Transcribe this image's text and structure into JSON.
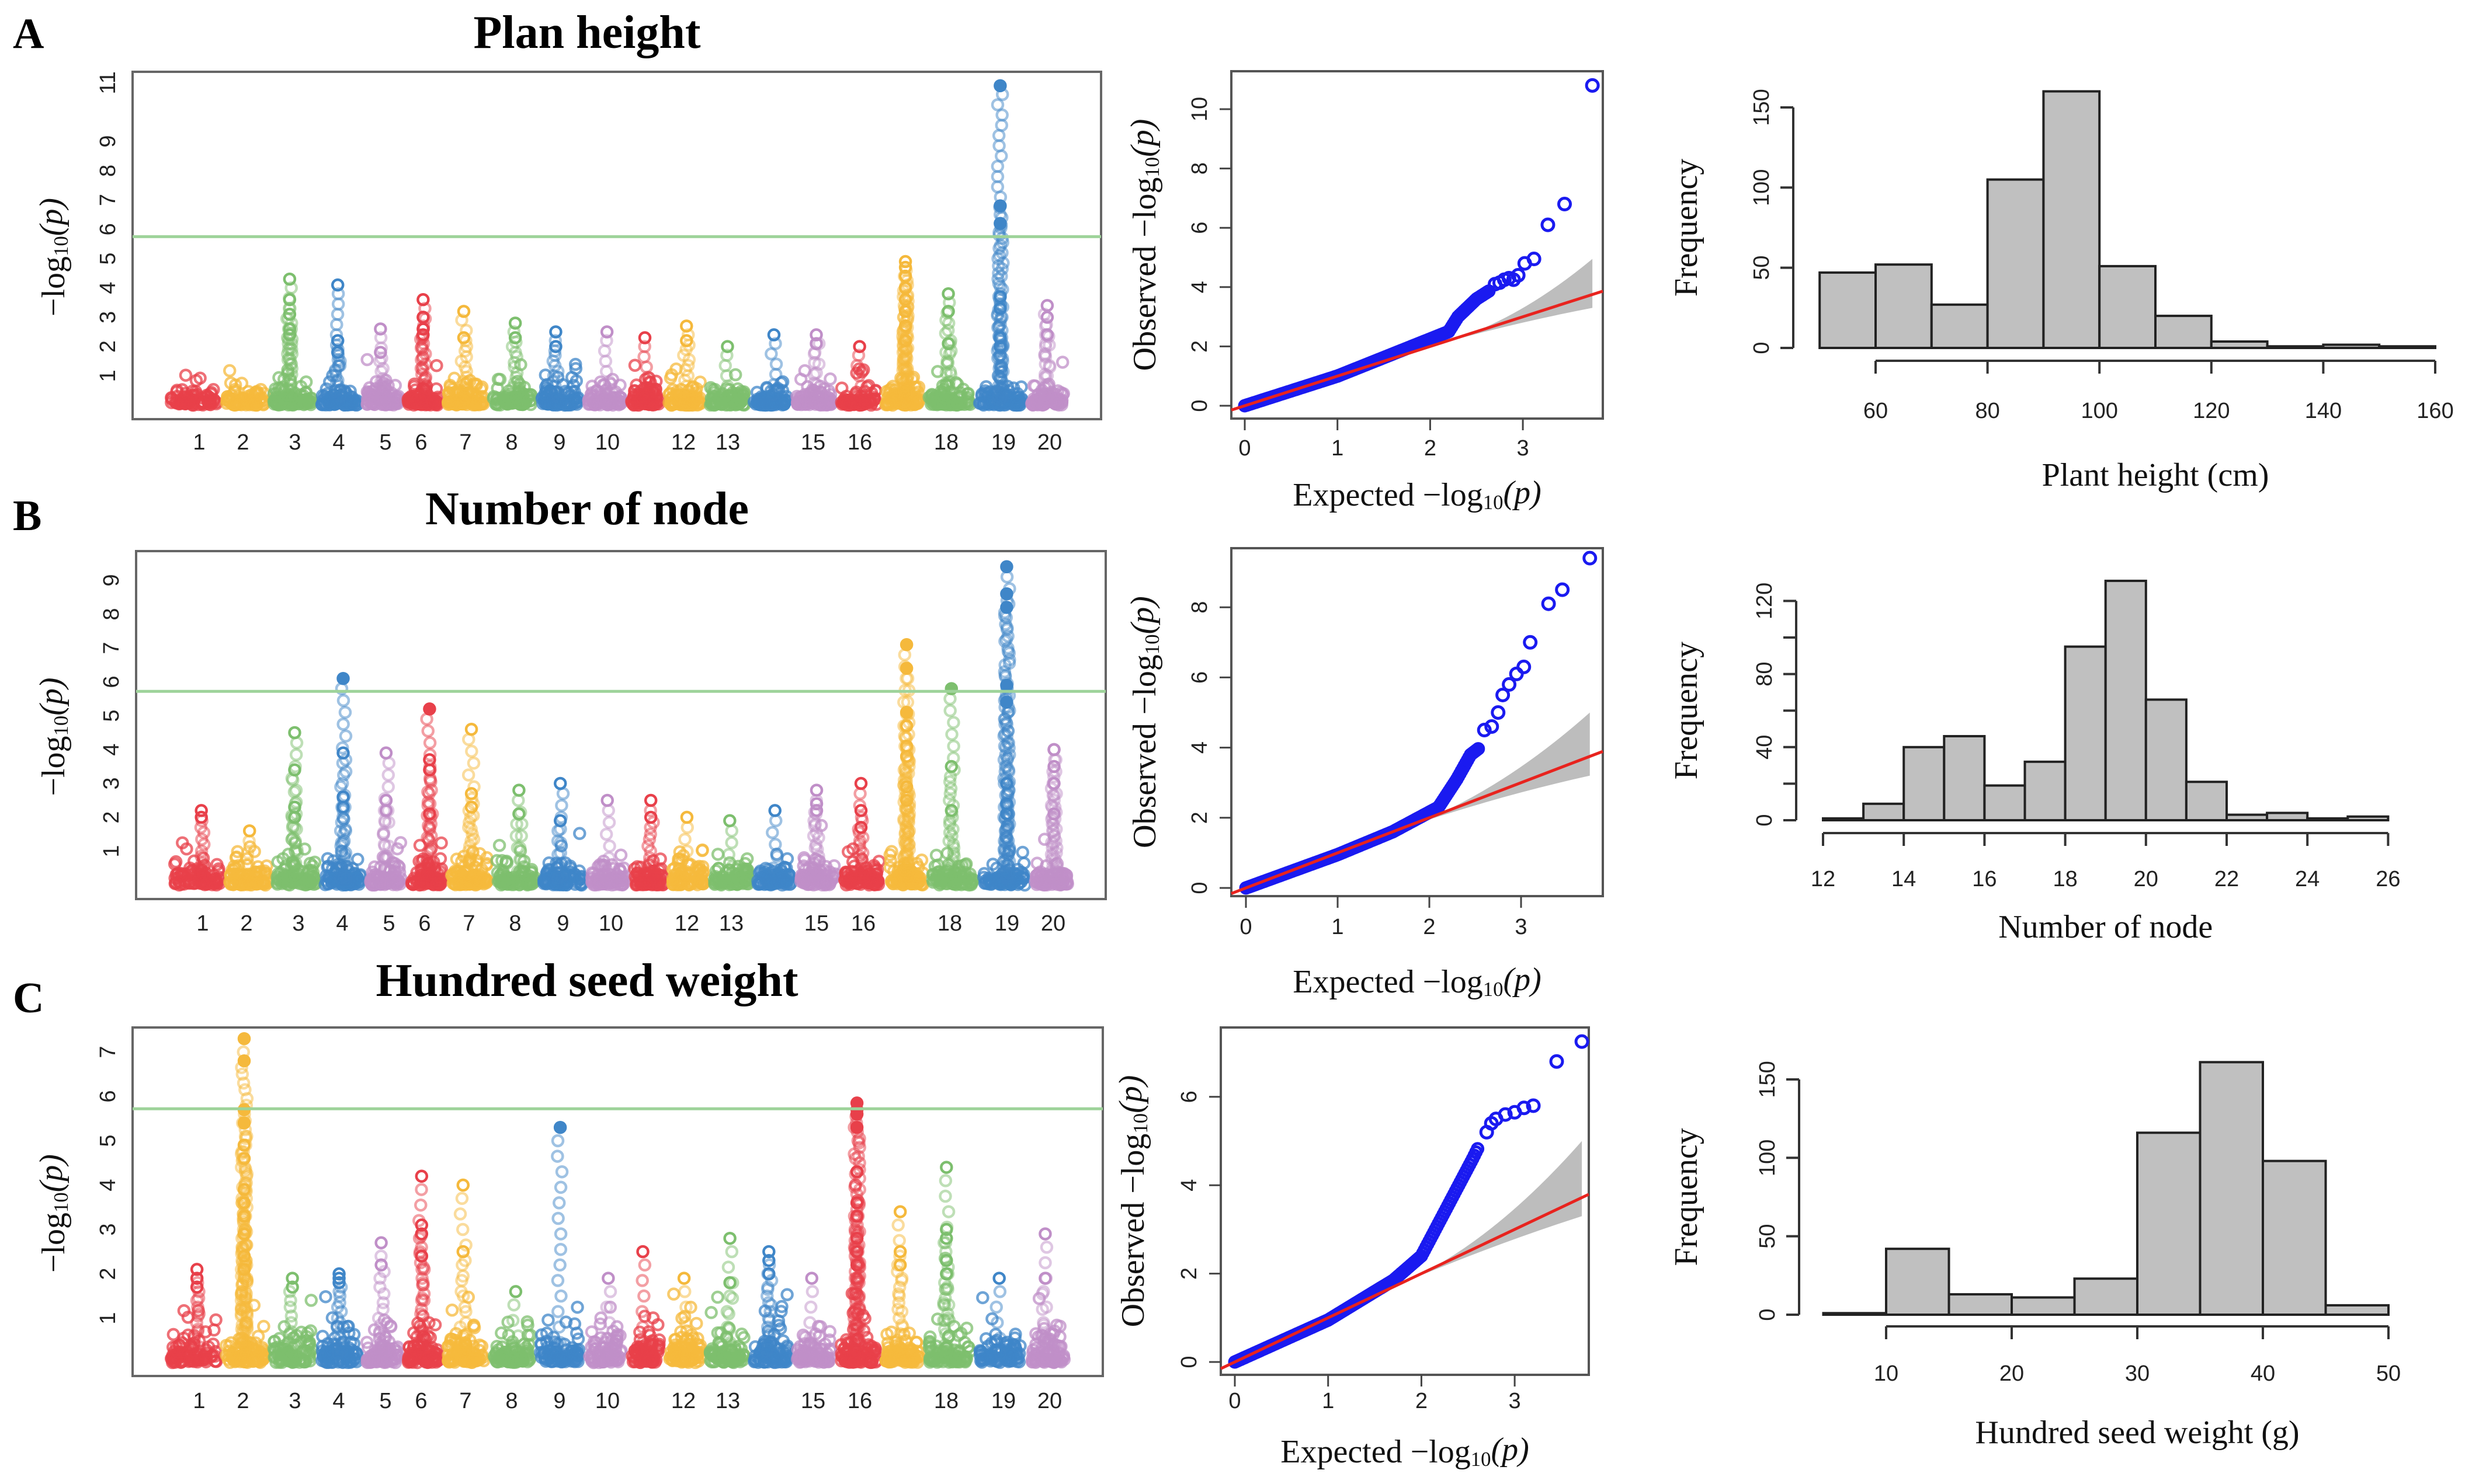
{
  "panels": [
    {
      "letter": "A",
      "title": "Plan height",
      "manhattan": {
        "type": "scatter",
        "ylabel": {
          "prefix": "−log",
          "sub": "10",
          "suffix": "(p)"
        },
        "yticks": [
          1,
          2,
          3,
          4,
          5,
          6,
          7,
          8,
          9,
          11
        ],
        "threshold": 5.75,
        "chr_labels": [
          "1",
          "2",
          "3",
          "4",
          "5",
          "6",
          "7",
          "8",
          "9",
          "10",
          "12",
          "13",
          "15",
          "16",
          "18",
          "19",
          "20"
        ],
        "peaks": {
          "3": [
            4.3,
            3.6,
            3.1,
            2.6,
            2.4
          ],
          "4": [
            4.1,
            2.2,
            1.8
          ],
          "5": [
            2.6,
            1.8
          ],
          "6": [
            3.6,
            3.0,
            2.6,
            2.4
          ],
          "7": [
            3.2,
            2.3
          ],
          "8": [
            2.8,
            2.3
          ],
          "9": [
            2.5,
            2.0
          ],
          "10": [
            2.5
          ],
          "11": [
            2.3
          ],
          "12": [
            2.7,
            2.2
          ],
          "13": [
            2.0
          ],
          "14": [
            2.4
          ],
          "15": [
            2.4,
            2.1
          ],
          "16": [
            2.0
          ],
          "17": [
            4.9,
            4.7,
            4.4,
            4.0,
            3.6,
            3.2,
            2.7,
            2.2
          ],
          "18": [
            3.8,
            3.2,
            2.1
          ],
          "19": [
            10.9,
            6.8,
            6.2,
            3.7,
            3.3,
            2.3,
            2.0
          ],
          "20": [
            3.4,
            3.0,
            2.4
          ]
        }
      },
      "qq": {
        "type": "scatter",
        "xlabel": {
          "prefix": "Expected −log",
          "sub": "10",
          "suffix": "(p)"
        },
        "ylabel": {
          "prefix": "Observed −log",
          "sub": "10",
          "suffix": "(p)"
        },
        "xticks": [
          0,
          1,
          2,
          3
        ],
        "yticks": [
          0,
          2,
          4,
          6,
          8,
          10
        ],
        "bulk": [
          [
            0,
            0
          ],
          [
            1,
            1
          ],
          [
            1.8,
            2.0
          ],
          [
            2.2,
            2.5
          ],
          [
            2.3,
            3.0
          ],
          [
            2.5,
            3.6
          ],
          [
            2.65,
            3.9
          ]
        ],
        "tail": [
          [
            2.7,
            4.1
          ],
          [
            2.75,
            4.15
          ],
          [
            2.8,
            4.25
          ],
          [
            2.85,
            4.3
          ],
          [
            2.9,
            4.25
          ],
          [
            2.95,
            4.4
          ],
          [
            3.02,
            4.8
          ],
          [
            3.12,
            4.95
          ],
          [
            3.27,
            6.1
          ],
          [
            3.45,
            6.8
          ],
          [
            3.75,
            10.8
          ]
        ],
        "band": {
          "from": 2.0,
          "to": 3.75,
          "upper_end": 4.95,
          "lower_end": 3.3
        }
      },
      "hist": {
        "type": "bar",
        "xlabel": "Plant height (cm)",
        "ylabel": "Frequency",
        "bin_start": 50,
        "bin_width": 10,
        "counts": [
          47,
          52,
          27,
          105,
          160,
          51,
          20,
          4,
          1,
          2,
          1
        ],
        "xticks": [
          "60",
          "80",
          "100",
          "120",
          "140",
          "160"
        ],
        "yticks": [
          "0",
          "50",
          "100",
          "150"
        ]
      }
    },
    {
      "letter": "B",
      "title": "Number of node",
      "manhattan": {
        "type": "scatter",
        "ylabel": {
          "prefix": "−log",
          "sub": "10",
          "suffix": "(p)"
        },
        "yticks": [
          1,
          2,
          3,
          4,
          5,
          6,
          7,
          8,
          9
        ],
        "threshold": 5.72,
        "chr_labels": [
          "1",
          "2",
          "3",
          "4",
          "5",
          "6",
          "7",
          "8",
          "9",
          "10",
          "12",
          "13",
          "15",
          "16",
          "18",
          "19",
          "20"
        ],
        "peaks": {
          "1": [
            2.2,
            2.0
          ],
          "2": [
            1.6
          ],
          "3": [
            4.5,
            3.4,
            2.3,
            2.0
          ],
          "4": [
            6.1,
            3.9,
            2.6,
            2.3
          ],
          "5": [
            3.9,
            2.5,
            2.2
          ],
          "6": [
            5.2,
            3.7,
            3.4,
            2.1
          ],
          "7": [
            4.6,
            2.7,
            2.3
          ],
          "8": [
            2.8,
            2.1
          ],
          "9": [
            3.0,
            1.9
          ],
          "10": [
            2.5
          ],
          "11": [
            2.5,
            2.0
          ],
          "12": [
            2.0
          ],
          "13": [
            1.9
          ],
          "14": [
            2.2
          ],
          "15": [
            2.8,
            2.4,
            2.2
          ],
          "16": [
            3.0,
            2.2,
            1.7
          ],
          "17": [
            7.1,
            6.4,
            5.1,
            4.7,
            4.1,
            3.8,
            2.9,
            2.5
          ],
          "18": [
            5.8,
            3.5,
            2.2
          ],
          "19": [
            9.4,
            8.6,
            8.2,
            5.9,
            5.4,
            3.0,
            2.4,
            2.1
          ],
          "20": [
            4.0,
            4.0,
            3.5,
            3.0,
            2.1
          ]
        }
      },
      "qq": {
        "type": "scatter",
        "xlabel": {
          "prefix": "Expected −log",
          "sub": "10",
          "suffix": "(p)"
        },
        "ylabel": {
          "prefix": "Observed −log",
          "sub": "10",
          "suffix": "(p)"
        },
        "xticks": [
          0,
          1,
          2,
          3
        ],
        "yticks": [
          0,
          2,
          4,
          6,
          8
        ],
        "bulk": [
          [
            0,
            0
          ],
          [
            1,
            0.95
          ],
          [
            1.6,
            1.6
          ],
          [
            2.1,
            2.3
          ],
          [
            2.3,
            3.1
          ],
          [
            2.45,
            3.8
          ],
          [
            2.55,
            4.0
          ]
        ],
        "tail": [
          [
            2.6,
            4.5
          ],
          [
            2.68,
            4.6
          ],
          [
            2.75,
            5.0
          ],
          [
            2.8,
            5.5
          ],
          [
            2.87,
            5.8
          ],
          [
            2.95,
            6.1
          ],
          [
            3.03,
            6.3
          ],
          [
            3.1,
            7.0
          ],
          [
            3.3,
            8.1
          ],
          [
            3.45,
            8.5
          ],
          [
            3.75,
            9.4
          ]
        ],
        "band": {
          "from": 1.6,
          "to": 3.75,
          "upper_end": 5.0,
          "lower_end": 3.2
        }
      },
      "hist": {
        "type": "bar",
        "xlabel": "Number of node",
        "ylabel": "Frequency",
        "bin_start": 12,
        "bin_width": 1,
        "counts": [
          1,
          9,
          40,
          46,
          19,
          32,
          95,
          131,
          66,
          21,
          3,
          4,
          1,
          2
        ],
        "xticks": [
          "12",
          "14",
          "16",
          "18",
          "20",
          "22",
          "24",
          "26"
        ],
        "yticks": [
          "0",
          "40",
          "80",
          "120"
        ]
      }
    },
    {
      "letter": "C",
      "title": "Hundred seed weight",
      "manhattan": {
        "type": "scatter",
        "ylabel": {
          "prefix": "−log",
          "sub": "10",
          "suffix": "(p)"
        },
        "yticks": [
          1,
          2,
          3,
          4,
          5,
          6,
          7
        ],
        "threshold": 5.72,
        "chr_labels": [
          "1",
          "2",
          "3",
          "4",
          "5",
          "6",
          "7",
          "8",
          "9",
          "10",
          "12",
          "13",
          "15",
          "16",
          "18",
          "19",
          "20"
        ],
        "peaks": {
          "1": [
            2.1,
            1.9,
            1.7
          ],
          "2": [
            7.3,
            6.8,
            5.7,
            5.4,
            4.9,
            4.6,
            3.9,
            3.6,
            3.3,
            2.9,
            2.4,
            2.1
          ],
          "3": [
            1.9,
            1.7
          ],
          "4": [
            2.0,
            1.9,
            1.8
          ],
          "5": [
            2.7,
            2.2
          ],
          "6": [
            4.2,
            3.1,
            2.9,
            2.4
          ],
          "7": [
            4.0,
            2.5
          ],
          "8": [
            1.6
          ],
          "9": [
            5.3
          ],
          "10": [
            1.9
          ],
          "11": [
            2.5
          ],
          "12": [
            1.9
          ],
          "13": [
            2.8,
            1.8
          ],
          "14": [
            2.5,
            2.3,
            2.0
          ],
          "15": [
            1.9
          ],
          "16": [
            5.85,
            5.7,
            5.6,
            5.3,
            4.3,
            3.6,
            3.3,
            2.8,
            2.5,
            2.2
          ],
          "17": [
            3.4,
            2.5,
            2.2
          ],
          "18": [
            4.4,
            3.0,
            2.8,
            2.3,
            2.0
          ],
          "19": [
            1.9
          ],
          "20": [
            2.9,
            1.9
          ]
        }
      },
      "qq": {
        "type": "scatter",
        "xlabel": {
          "prefix": "Expected −log",
          "sub": "10",
          "suffix": "(p)"
        },
        "ylabel": {
          "prefix": "Observed −log",
          "sub": "10",
          "suffix": "(p)"
        },
        "xticks": [
          0,
          1,
          2,
          3
        ],
        "yticks": [
          0,
          2,
          4,
          6
        ],
        "bulk": [
          [
            0,
            0
          ],
          [
            1,
            0.95
          ],
          [
            1.7,
            1.85
          ],
          [
            2.0,
            2.4
          ],
          [
            2.2,
            3.2
          ],
          [
            2.4,
            4.0
          ],
          [
            2.55,
            4.6
          ],
          [
            2.62,
            4.9
          ]
        ],
        "tail": [
          [
            2.7,
            5.2
          ],
          [
            2.75,
            5.4
          ],
          [
            2.8,
            5.5
          ],
          [
            2.9,
            5.6
          ],
          [
            3.0,
            5.65
          ],
          [
            3.1,
            5.75
          ],
          [
            3.2,
            5.8
          ],
          [
            3.45,
            6.8
          ],
          [
            3.72,
            7.25
          ]
        ],
        "band": {
          "from": 1.7,
          "to": 3.72,
          "upper_end": 5.0,
          "lower_end": 3.3
        }
      },
      "hist": {
        "type": "bar",
        "xlabel": "Hundred seed weight (g)",
        "ylabel": "Frequency",
        "bin_start": 5,
        "bin_width": 5,
        "counts": [
          1,
          42,
          13,
          11,
          23,
          116,
          161,
          98,
          6
        ],
        "xticks": [
          "10",
          "20",
          "30",
          "40",
          "50"
        ],
        "yticks": [
          "0",
          "50",
          "100",
          "150"
        ]
      }
    }
  ],
  "colors": {
    "chromosomes": [
      "#E8404A",
      "#F5B93C",
      "#7DBF6E",
      "#3F86C8",
      "#C08FC8"
    ],
    "threshold": "#9ED39A",
    "qq_points": "#1A1AF0",
    "qq_line": "#E8231E",
    "band": "#BDBDBD",
    "bar": "#C0C0C0"
  }
}
